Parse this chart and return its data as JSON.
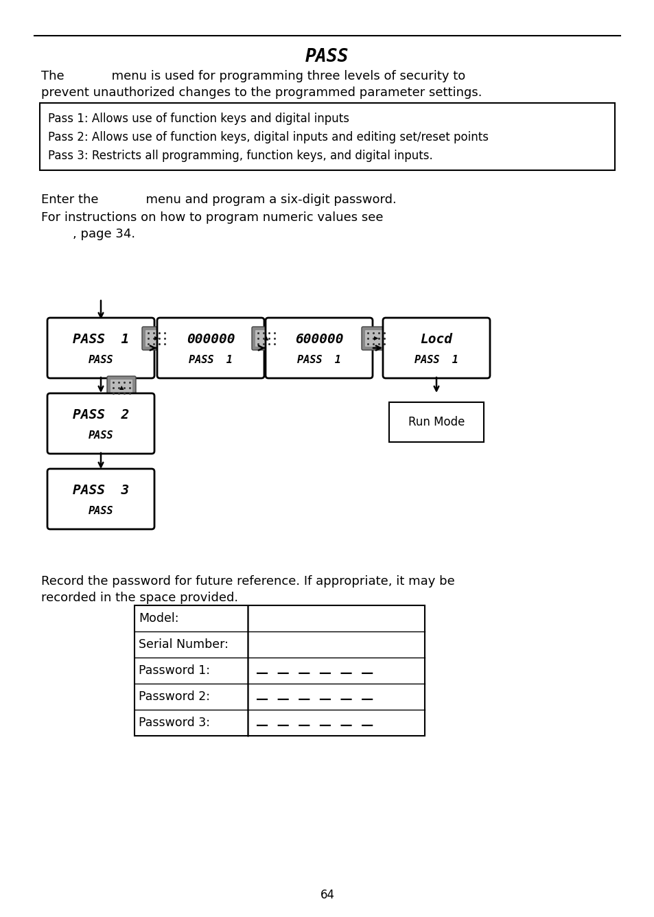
{
  "title": "PASS",
  "body_text_1": "The            menu is used for programming three levels of security to",
  "body_text_2": "prevent unauthorized changes to the programmed parameter settings.",
  "info_box_lines": [
    "Pass 1: Allows use of function keys and digital inputs",
    "Pass 2: Allows use of function keys, digital inputs and editing set/reset points",
    "Pass 3: Restricts all programming, function keys, and digital inputs."
  ],
  "enter_text_1": "Enter the            menu and program a six-digit password.",
  "enter_text_2": "For instructions on how to program numeric values see",
  "enter_text_3": "        , page 34.",
  "record_text_1": "Record the password for future reference. If appropriate, it may be",
  "record_text_2": "recorded in the space provided.",
  "table_rows": [
    "Model:",
    "Serial Number:",
    "Password 1:",
    "Password 2:",
    "Password 3:"
  ],
  "table_blanks": [
    "",
    "",
    "—  —  —  —  —  —",
    "—  —  —  —  —  —",
    "—  —  —  —  —  —"
  ],
  "page_number": "64",
  "background_color": "#ffffff",
  "text_color": "#000000"
}
